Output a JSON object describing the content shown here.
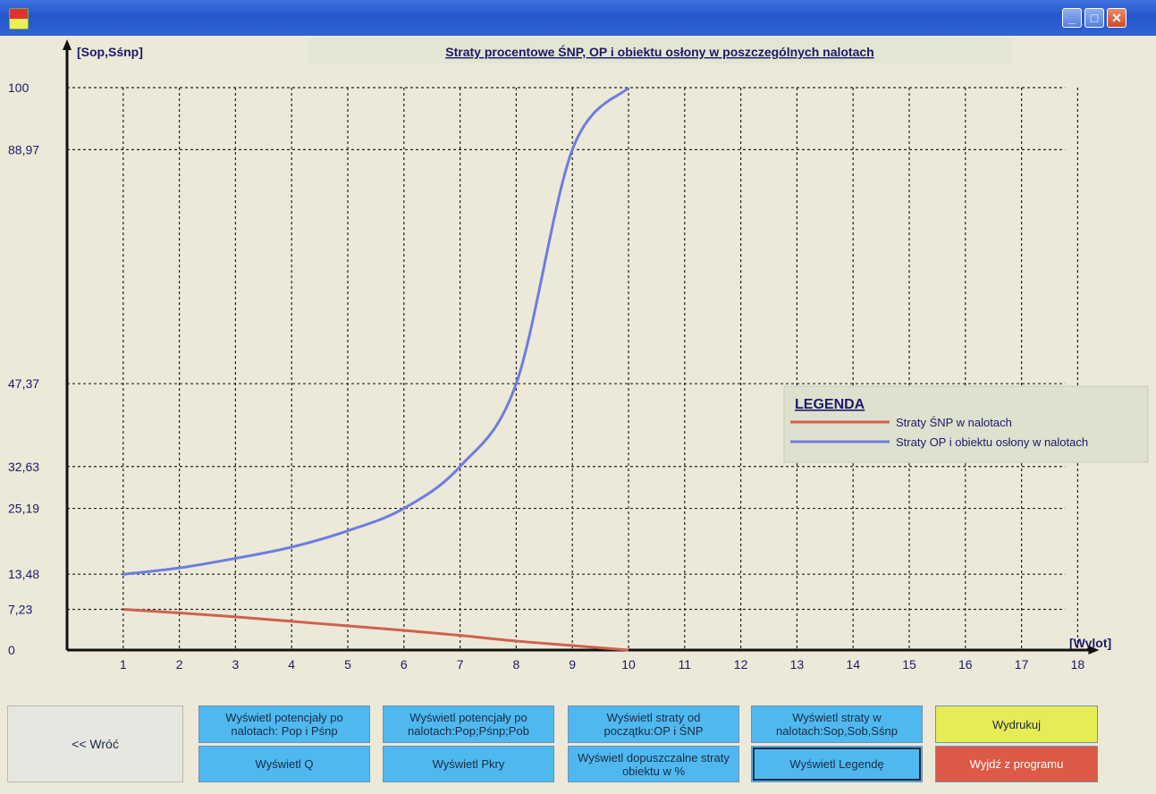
{
  "window": {
    "title": ""
  },
  "chart_data": {
    "type": "line",
    "title": "Straty procentowe ŚNP, OP i obiektu osłony w poszczególnych nalotach",
    "ylabel": "[Sop,Sśnp]",
    "xlabel": "[Wylot]",
    "x": [
      1,
      2,
      3,
      4,
      5,
      6,
      7,
      8,
      9,
      10
    ],
    "xticks": [
      "1",
      "2",
      "3",
      "4",
      "5",
      "6",
      "7",
      "8",
      "9",
      "10",
      "11",
      "12",
      "13",
      "14",
      "15",
      "16",
      "17",
      "18"
    ],
    "yticks": [
      {
        "value": 0,
        "label": "0"
      },
      {
        "value": 7.23,
        "label": "7,23"
      },
      {
        "value": 13.48,
        "label": "13,48"
      },
      {
        "value": 25.19,
        "label": "25,19"
      },
      {
        "value": 32.63,
        "label": "32,63"
      },
      {
        "value": 47.37,
        "label": "47,37"
      },
      {
        "value": 88.97,
        "label": "88,97"
      },
      {
        "value": 100,
        "label": "100"
      }
    ],
    "ylim": [
      0,
      100
    ],
    "xlim": [
      0,
      18
    ],
    "grid": true,
    "series": [
      {
        "name": "Straty ŚNP w nalotach",
        "color": "#d0614f",
        "values": [
          7.23,
          6.6,
          5.9,
          5.1,
          4.3,
          3.5,
          2.6,
          1.6,
          0.8,
          0
        ]
      },
      {
        "name": "Straty OP i obiektu osłony w nalotach",
        "color": "#6d7de0",
        "values": [
          13.48,
          14.6,
          16.3,
          18.3,
          21.2,
          25.19,
          32.63,
          47.37,
          88.97,
          100
        ]
      }
    ],
    "legend": {
      "title": "LEGENDA",
      "position": "right"
    }
  },
  "buttons": {
    "back": "<< Wróć",
    "show_potentials_pop_psnp": "Wyświetl potencjały po nalotach: Pop i Pśnp",
    "show_q": "Wyświetl Q",
    "show_potentials_pop_psnp_pob": "Wyświetl potencjały po nalotach:Pop;Pśnp;Pob",
    "show_pkry": "Wyświetl Pkry",
    "show_losses_from_start": "Wyświetl straty od początku:OP i ŚNP",
    "show_allowed_losses": "Wyświetl dopuszczalne straty obiektu w %",
    "show_losses_in_raids": "Wyświetl straty w nalotach:Sop,Sob,Sśnp",
    "show_legend": "Wyświetl Legendę",
    "print": "Wydrukuj",
    "exit": "Wyjdź z programu"
  },
  "colors": {
    "titlebar": "#2457c9",
    "button_blue": "#4fb9ef",
    "button_yellow": "#e6ec53",
    "button_red": "#dc5a47"
  }
}
